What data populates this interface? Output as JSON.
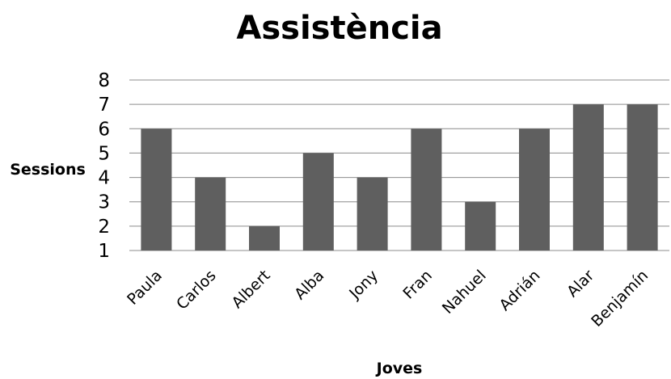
{
  "chart_data": {
    "type": "bar",
    "title": "Assistència",
    "xlabel": "Joves",
    "ylabel": "Sessions",
    "categories": [
      "Paula",
      "Carlos",
      "Albert",
      "Alba",
      "Jony",
      "Fran",
      "Nahuel",
      "Adrián",
      "Alar",
      "Benjamín"
    ],
    "values": [
      6,
      4,
      2,
      5,
      4,
      6,
      3,
      6,
      7,
      7
    ],
    "ylim": [
      1,
      8
    ],
    "yticks": [
      "1",
      "2",
      "3",
      "4",
      "5",
      "6",
      "7",
      "8"
    ],
    "grid": true,
    "legend": "none",
    "colors": {
      "bar": "#5f5f5f",
      "grid": "#8c8c8c"
    }
  }
}
